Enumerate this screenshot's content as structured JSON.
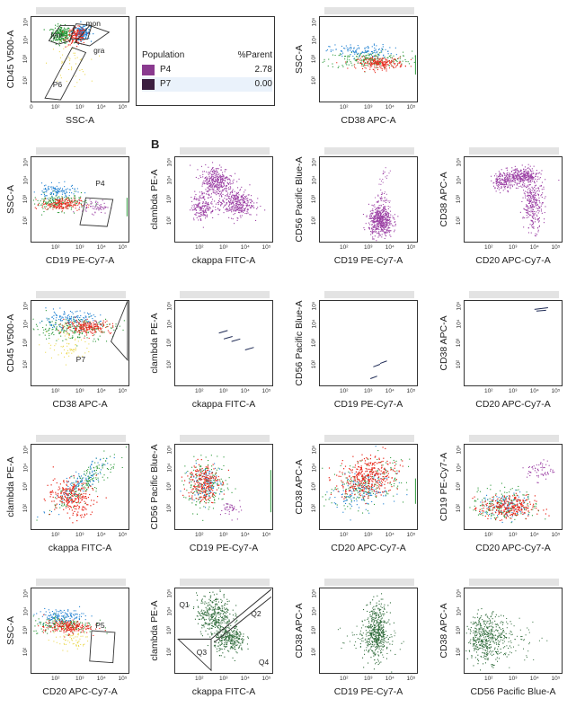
{
  "section_labels": {
    "b": "B"
  },
  "legend": {
    "header_population": "Population",
    "header_parent": "%Parent",
    "rows": [
      {
        "name": "P4",
        "value": "2.78",
        "color": "#8a3a8f"
      },
      {
        "name": "P7",
        "value": "0.00",
        "color": "#3b1e3f"
      }
    ]
  },
  "colors": {
    "red": "#e8291c",
    "blue": "#1d7fd1",
    "green": "#2d9a3a",
    "yellow": "#e9d43a",
    "purple": "#9b3fa4",
    "darkgreen": "#2f6b3a",
    "navy": "#1e2a55",
    "gate": "#333333"
  },
  "tick_labels": {
    "t2": "10²",
    "t3": "10³",
    "t4": "10⁴",
    "t5": "10⁵",
    "zero": "0"
  },
  "gates": {
    "mon": "mon",
    "lym": "lym",
    "gra": "gra",
    "p6": "P6",
    "p4": "P4",
    "p7": "P7",
    "p5": "P5",
    "q1": "Q1",
    "q2": "Q2",
    "q3": "Q3",
    "q4": "Q4"
  },
  "chart_data": [
    {
      "id": "r1c1",
      "type": "scatter",
      "xlabel": "SSC-A",
      "ylabel": "CD45 V500-A",
      "pattern": "cd45ssc"
    },
    {
      "id": "r1c3",
      "type": "scatter",
      "xlabel": "CD38 APC-A",
      "ylabel": "SSC-A",
      "pattern": "band"
    },
    {
      "id": "r2c1",
      "type": "scatter",
      "xlabel": "CD19 PE-Cy7-A",
      "ylabel": "SSC-A",
      "pattern": "band_gate"
    },
    {
      "id": "r2c2",
      "type": "scatter",
      "xlabel": "ckappa FITC-A",
      "ylabel": "clambda PE-A",
      "pattern": "purple_kl"
    },
    {
      "id": "r2c3",
      "type": "scatter",
      "xlabel": "CD19 PE-Cy7-A",
      "ylabel": "CD56 Pacific Blue-A",
      "pattern": "purple_cd19"
    },
    {
      "id": "r2c4",
      "type": "scatter",
      "xlabel": "CD20 APC-Cy7-A",
      "ylabel": "CD38 APC-A",
      "pattern": "purple_cd20"
    },
    {
      "id": "r3c1",
      "type": "scatter",
      "xlabel": "CD38 APC-A",
      "ylabel": "CD45 V500-A",
      "pattern": "band_p7"
    },
    {
      "id": "r3c2",
      "type": "scatter",
      "xlabel": "ckappa FITC-A",
      "ylabel": "clambda PE-A",
      "pattern": "sparse_kl"
    },
    {
      "id": "r3c3",
      "type": "scatter",
      "xlabel": "CD19 PE-Cy7-A",
      "ylabel": "CD56 Pacific Blue-A",
      "pattern": "sparse_cd19"
    },
    {
      "id": "r3c4",
      "type": "scatter",
      "xlabel": "CD20 APC-Cy7-A",
      "ylabel": "CD38 APC-A",
      "pattern": "sparse_cd20"
    },
    {
      "id": "r4c1",
      "type": "scatter",
      "xlabel": "ckappa FITC-A",
      "ylabel": "clambda PE-A",
      "pattern": "diag"
    },
    {
      "id": "r4c2",
      "type": "scatter",
      "xlabel": "CD19 PE-Cy7-A",
      "ylabel": "CD56 Pacific Blue-A",
      "pattern": "cluster_left"
    },
    {
      "id": "r4c3",
      "type": "scatter",
      "xlabel": "CD20 APC-Cy7-A",
      "ylabel": "CD38 APC-A",
      "pattern": "big_cluster"
    },
    {
      "id": "r4c4",
      "type": "scatter",
      "xlabel": "CD20 APC-Cy7-A",
      "ylabel": "CD19 PE-Cy7-A",
      "pattern": "diag_low"
    },
    {
      "id": "r5c1",
      "type": "scatter",
      "xlabel": "CD20 APC-Cy7-A",
      "ylabel": "SSC-A",
      "pattern": "band_p5"
    },
    {
      "id": "r5c2",
      "type": "scatter",
      "xlabel": "ckappa FITC-A",
      "ylabel": "clambda PE-A",
      "pattern": "green_quad"
    },
    {
      "id": "r5c3",
      "type": "scatter",
      "xlabel": "CD19 PE-Cy7-A",
      "ylabel": "CD38 APC-A",
      "pattern": "green_col"
    },
    {
      "id": "r5c4",
      "type": "scatter",
      "xlabel": "CD56 Pacific Blue-A",
      "ylabel": "CD38 APC-A",
      "pattern": "green_left"
    }
  ]
}
